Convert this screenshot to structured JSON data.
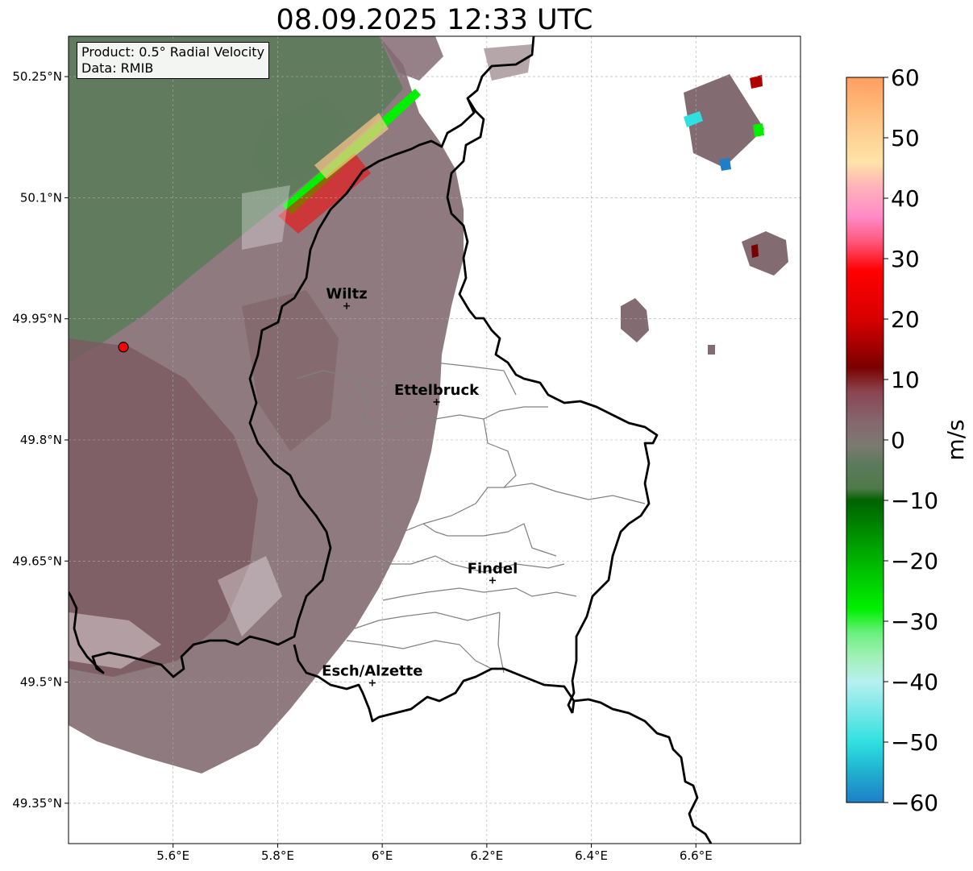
{
  "title": "08.09.2025 12:33 UTC",
  "info": {
    "product": "Product: 0.5° Radial Velocity",
    "source": "Data: RMIB"
  },
  "map": {
    "lon_range": [
      5.4,
      6.8
    ],
    "lat_range": [
      49.3,
      50.3
    ],
    "lon_ticks": [
      {
        "value": 5.6,
        "label": "5.6°E"
      },
      {
        "value": 5.8,
        "label": "5.8°E"
      },
      {
        "value": 6.0,
        "label": "6°E"
      },
      {
        "value": 6.2,
        "label": "6.2°E"
      },
      {
        "value": 6.4,
        "label": "6.4°E"
      },
      {
        "value": 6.6,
        "label": "6.6°E"
      }
    ],
    "lat_ticks": [
      {
        "value": 50.25,
        "label": "50.25°N"
      },
      {
        "value": 50.1,
        "label": "50.1°N"
      },
      {
        "value": 49.95,
        "label": "49.95°N"
      },
      {
        "value": 49.8,
        "label": "49.8°N"
      },
      {
        "value": 49.65,
        "label": "49.65°N"
      },
      {
        "value": 49.5,
        "label": "49.5°N"
      },
      {
        "value": 49.35,
        "label": "49.35°N"
      }
    ],
    "radar_site": {
      "lon": 5.505,
      "lat": 49.915
    },
    "cities": [
      {
        "name": "Wiltz",
        "lon": 5.932,
        "lat": 49.966
      },
      {
        "name": "Ettelbruck",
        "lon": 6.104,
        "lat": 49.847
      },
      {
        "name": "Findel",
        "lon": 6.211,
        "lat": 49.626
      },
      {
        "name": "Esch/Alzette",
        "lon": 5.981,
        "lat": 49.499
      }
    ],
    "colors": {
      "border": "#000000",
      "internal_border": "#808080",
      "grid": "#aaaaaa",
      "radar_site": "#ff0000",
      "echo_green": "#5e7b5c",
      "echo_brown": "#7c5a60",
      "echo_mauve": "#836b72"
    }
  },
  "colorbar": {
    "label": "m/s",
    "min": -60,
    "max": 60,
    "ticks": [
      {
        "value": 60,
        "label": "60"
      },
      {
        "value": 50,
        "label": "50"
      },
      {
        "value": 40,
        "label": "40"
      },
      {
        "value": 30,
        "label": "30"
      },
      {
        "value": 20,
        "label": "20"
      },
      {
        "value": 10,
        "label": "10"
      },
      {
        "value": 0,
        "label": "0"
      },
      {
        "value": -10,
        "label": "−10"
      },
      {
        "value": -20,
        "label": "−20"
      },
      {
        "value": -30,
        "label": "−30"
      },
      {
        "value": -40,
        "label": "−40"
      },
      {
        "value": -50,
        "label": "−50"
      },
      {
        "value": -60,
        "label": "−60"
      }
    ],
    "stops": [
      {
        "value": 60,
        "color": "#ff9e5e"
      },
      {
        "value": 52,
        "color": "#ffc98a"
      },
      {
        "value": 46,
        "color": "#ffe3a8"
      },
      {
        "value": 42,
        "color": "#ffb3b8"
      },
      {
        "value": 37,
        "color": "#ff8ac8"
      },
      {
        "value": 33,
        "color": "#ff5a80"
      },
      {
        "value": 28,
        "color": "#ff0000"
      },
      {
        "value": 20,
        "color": "#d80000"
      },
      {
        "value": 12,
        "color": "#7a0000"
      },
      {
        "value": 8,
        "color": "#8a4650"
      },
      {
        "value": 3,
        "color": "#866670"
      },
      {
        "value": -1,
        "color": "#7b7b70"
      },
      {
        "value": -4,
        "color": "#5c7a5c"
      },
      {
        "value": -8,
        "color": "#4f7a4a"
      },
      {
        "value": -10,
        "color": "#006200"
      },
      {
        "value": -20,
        "color": "#00b400"
      },
      {
        "value": -28,
        "color": "#00f000"
      },
      {
        "value": -32,
        "color": "#6cf080"
      },
      {
        "value": -36,
        "color": "#a2f0b8"
      },
      {
        "value": -40,
        "color": "#b8f0f0"
      },
      {
        "value": -50,
        "color": "#30e0e0"
      },
      {
        "value": -55,
        "color": "#20b0d0"
      },
      {
        "value": -60,
        "color": "#1e7ec8"
      }
    ]
  }
}
